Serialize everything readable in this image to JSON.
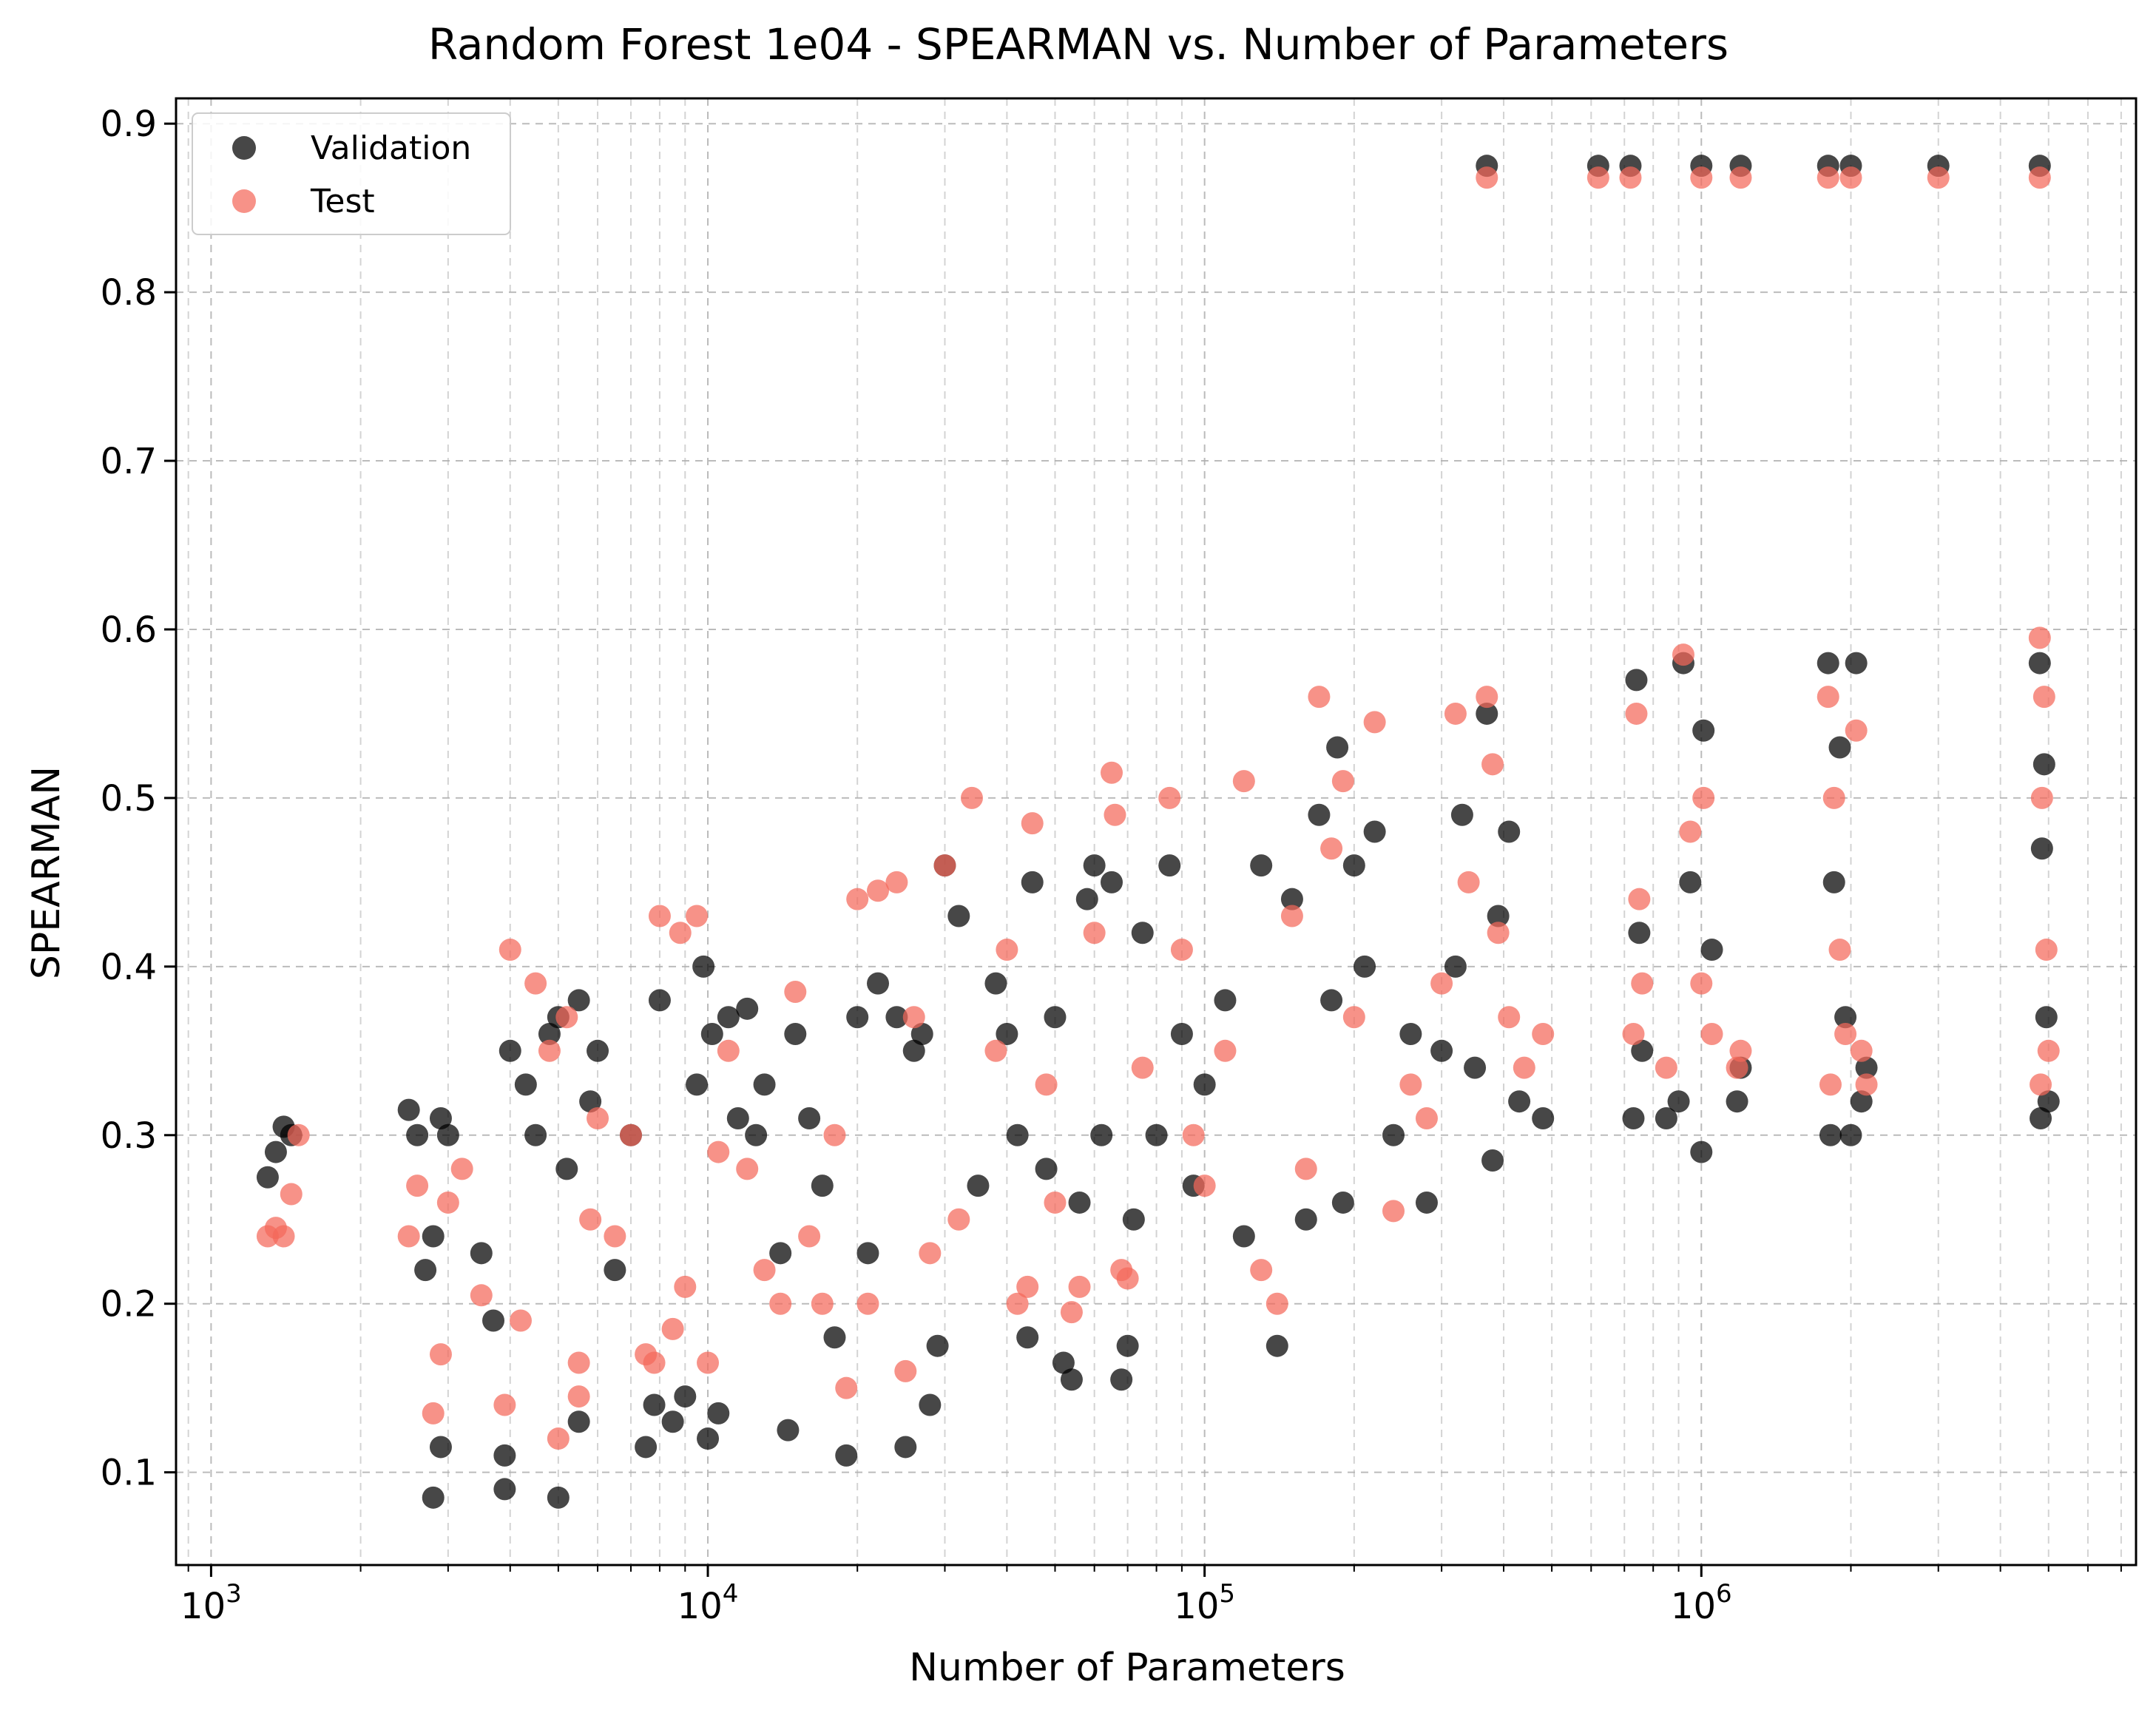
{
  "chart_data": {
    "type": "scatter",
    "title": "Random Forest 1e04 - SPEARMAN vs. Number of Parameters",
    "xlabel": "Number of Parameters",
    "ylabel": "SPEARMAN",
    "xscale": "log",
    "xlim": [
      850,
      7500000
    ],
    "ylim": [
      0.045,
      0.915
    ],
    "grid": true,
    "legend_position": "top-left",
    "x_ticks": [
      {
        "value": 1000,
        "base": "10",
        "exp": "3"
      },
      {
        "value": 10000,
        "base": "10",
        "exp": "4"
      },
      {
        "value": 100000,
        "base": "10",
        "exp": "5"
      },
      {
        "value": 1000000,
        "base": "10",
        "exp": "6"
      }
    ],
    "y_ticks": [
      {
        "value": 0.1,
        "label": "0.1"
      },
      {
        "value": 0.2,
        "label": "0.2"
      },
      {
        "value": 0.3,
        "label": "0.3"
      },
      {
        "value": 0.4,
        "label": "0.4"
      },
      {
        "value": 0.5,
        "label": "0.5"
      },
      {
        "value": 0.6,
        "label": "0.6"
      },
      {
        "value": 0.7,
        "label": "0.7"
      },
      {
        "value": 0.8,
        "label": "0.8"
      },
      {
        "value": 0.9,
        "label": "0.9"
      }
    ],
    "series": [
      {
        "name": "Validation",
        "color": "#000000",
        "points": [
          [
            1300,
            0.275
          ],
          [
            1350,
            0.29
          ],
          [
            1400,
            0.305
          ],
          [
            1450,
            0.3
          ],
          [
            2500,
            0.315
          ],
          [
            2600,
            0.3
          ],
          [
            2700,
            0.22
          ],
          [
            2800,
            0.24
          ],
          [
            2900,
            0.31
          ],
          [
            2800,
            0.085
          ],
          [
            2900,
            0.115
          ],
          [
            3000,
            0.3
          ],
          [
            3500,
            0.23
          ],
          [
            3700,
            0.19
          ],
          [
            3900,
            0.11
          ],
          [
            3900,
            0.09
          ],
          [
            4000,
            0.35
          ],
          [
            4300,
            0.33
          ],
          [
            4500,
            0.3
          ],
          [
            4800,
            0.36
          ],
          [
            5000,
            0.085
          ],
          [
            5000,
            0.37
          ],
          [
            5200,
            0.28
          ],
          [
            5500,
            0.38
          ],
          [
            5500,
            0.13
          ],
          [
            5800,
            0.32
          ],
          [
            6000,
            0.35
          ],
          [
            6500,
            0.22
          ],
          [
            7000,
            0.3
          ],
          [
            7500,
            0.115
          ],
          [
            7800,
            0.14
          ],
          [
            8000,
            0.38
          ],
          [
            8500,
            0.13
          ],
          [
            9000,
            0.145
          ],
          [
            9500,
            0.33
          ],
          [
            9800,
            0.4
          ],
          [
            10000,
            0.12
          ],
          [
            10200,
            0.36
          ],
          [
            10500,
            0.135
          ],
          [
            11000,
            0.37
          ],
          [
            11500,
            0.31
          ],
          [
            12000,
            0.375
          ],
          [
            12500,
            0.3
          ],
          [
            13000,
            0.33
          ],
          [
            14000,
            0.23
          ],
          [
            14500,
            0.125
          ],
          [
            15000,
            0.36
          ],
          [
            16000,
            0.31
          ],
          [
            17000,
            0.27
          ],
          [
            18000,
            0.18
          ],
          [
            19000,
            0.11
          ],
          [
            20000,
            0.37
          ],
          [
            21000,
            0.23
          ],
          [
            22000,
            0.39
          ],
          [
            24000,
            0.37
          ],
          [
            25000,
            0.115
          ],
          [
            26000,
            0.35
          ],
          [
            27000,
            0.36
          ],
          [
            28000,
            0.14
          ],
          [
            29000,
            0.175
          ],
          [
            30000,
            0.46
          ],
          [
            32000,
            0.43
          ],
          [
            35000,
            0.27
          ],
          [
            38000,
            0.39
          ],
          [
            40000,
            0.36
          ],
          [
            42000,
            0.3
          ],
          [
            44000,
            0.18
          ],
          [
            45000,
            0.45
          ],
          [
            48000,
            0.28
          ],
          [
            50000,
            0.37
          ],
          [
            52000,
            0.165
          ],
          [
            54000,
            0.155
          ],
          [
            56000,
            0.26
          ],
          [
            58000,
            0.44
          ],
          [
            60000,
            0.46
          ],
          [
            62000,
            0.3
          ],
          [
            65000,
            0.45
          ],
          [
            68000,
            0.155
          ],
          [
            70000,
            0.175
          ],
          [
            72000,
            0.25
          ],
          [
            75000,
            0.42
          ],
          [
            80000,
            0.3
          ],
          [
            85000,
            0.46
          ],
          [
            90000,
            0.36
          ],
          [
            95000,
            0.27
          ],
          [
            100000,
            0.33
          ],
          [
            110000,
            0.38
          ],
          [
            120000,
            0.24
          ],
          [
            130000,
            0.46
          ],
          [
            140000,
            0.175
          ],
          [
            150000,
            0.44
          ],
          [
            160000,
            0.25
          ],
          [
            170000,
            0.49
          ],
          [
            180000,
            0.38
          ],
          [
            185000,
            0.53
          ],
          [
            190000,
            0.26
          ],
          [
            200000,
            0.46
          ],
          [
            210000,
            0.4
          ],
          [
            220000,
            0.48
          ],
          [
            240000,
            0.3
          ],
          [
            260000,
            0.36
          ],
          [
            280000,
            0.26
          ],
          [
            300000,
            0.35
          ],
          [
            320000,
            0.4
          ],
          [
            330000,
            0.49
          ],
          [
            350000,
            0.34
          ],
          [
            370000,
            0.55
          ],
          [
            380000,
            0.285
          ],
          [
            390000,
            0.43
          ],
          [
            410000,
            0.48
          ],
          [
            430000,
            0.32
          ],
          [
            480000,
            0.31
          ],
          [
            370000,
            0.875
          ],
          [
            620000,
            0.875
          ],
          [
            720000,
            0.875
          ],
          [
            1000000,
            0.875
          ],
          [
            1200000,
            0.875
          ],
          [
            1800000,
            0.875
          ],
          [
            2000000,
            0.875
          ],
          [
            3000000,
            0.875
          ],
          [
            4800000,
            0.875
          ],
          [
            730000,
            0.31
          ],
          [
            740000,
            0.57
          ],
          [
            750000,
            0.42
          ],
          [
            760000,
            0.35
          ],
          [
            850000,
            0.31
          ],
          [
            900000,
            0.32
          ],
          [
            920000,
            0.58
          ],
          [
            950000,
            0.45
          ],
          [
            1000000,
            0.29
          ],
          [
            1010000,
            0.54
          ],
          [
            1050000,
            0.41
          ],
          [
            1180000,
            0.32
          ],
          [
            1200000,
            0.34
          ],
          [
            1800000,
            0.58
          ],
          [
            1820000,
            0.3
          ],
          [
            1850000,
            0.45
          ],
          [
            1900000,
            0.53
          ],
          [
            1950000,
            0.37
          ],
          [
            2000000,
            0.3
          ],
          [
            2050000,
            0.58
          ],
          [
            2100000,
            0.32
          ],
          [
            2150000,
            0.34
          ],
          [
            4800000,
            0.58
          ],
          [
            4820000,
            0.31
          ],
          [
            4850000,
            0.47
          ],
          [
            4900000,
            0.52
          ],
          [
            4950000,
            0.37
          ],
          [
            5000000,
            0.32
          ]
        ]
      },
      {
        "name": "Test",
        "color": "#f4685a",
        "points": [
          [
            1300,
            0.24
          ],
          [
            1350,
            0.245
          ],
          [
            1400,
            0.24
          ],
          [
            1450,
            0.265
          ],
          [
            1500,
            0.3
          ],
          [
            2500,
            0.24
          ],
          [
            2600,
            0.27
          ],
          [
            2800,
            0.135
          ],
          [
            2900,
            0.17
          ],
          [
            3000,
            0.26
          ],
          [
            3200,
            0.28
          ],
          [
            3500,
            0.205
          ],
          [
            3900,
            0.14
          ],
          [
            4000,
            0.41
          ],
          [
            4200,
            0.19
          ],
          [
            4500,
            0.39
          ],
          [
            4800,
            0.35
          ],
          [
            5000,
            0.12
          ],
          [
            5200,
            0.37
          ],
          [
            5500,
            0.145
          ],
          [
            5500,
            0.165
          ],
          [
            5800,
            0.25
          ],
          [
            6000,
            0.31
          ],
          [
            6500,
            0.24
          ],
          [
            7000,
            0.3
          ],
          [
            7500,
            0.17
          ],
          [
            7800,
            0.165
          ],
          [
            8000,
            0.43
          ],
          [
            8500,
            0.185
          ],
          [
            8800,
            0.42
          ],
          [
            9000,
            0.21
          ],
          [
            9500,
            0.43
          ],
          [
            10000,
            0.165
          ],
          [
            10500,
            0.29
          ],
          [
            11000,
            0.35
          ],
          [
            12000,
            0.28
          ],
          [
            13000,
            0.22
          ],
          [
            14000,
            0.2
          ],
          [
            15000,
            0.385
          ],
          [
            16000,
            0.24
          ],
          [
            17000,
            0.2
          ],
          [
            18000,
            0.3
          ],
          [
            19000,
            0.15
          ],
          [
            20000,
            0.44
          ],
          [
            21000,
            0.2
          ],
          [
            22000,
            0.445
          ],
          [
            24000,
            0.45
          ],
          [
            25000,
            0.16
          ],
          [
            26000,
            0.37
          ],
          [
            28000,
            0.23
          ],
          [
            30000,
            0.46
          ],
          [
            32000,
            0.25
          ],
          [
            34000,
            0.5
          ],
          [
            38000,
            0.35
          ],
          [
            40000,
            0.41
          ],
          [
            42000,
            0.2
          ],
          [
            44000,
            0.21
          ],
          [
            45000,
            0.485
          ],
          [
            48000,
            0.33
          ],
          [
            50000,
            0.26
          ],
          [
            54000,
            0.195
          ],
          [
            56000,
            0.21
          ],
          [
            60000,
            0.42
          ],
          [
            65000,
            0.515
          ],
          [
            66000,
            0.49
          ],
          [
            68000,
            0.22
          ],
          [
            70000,
            0.215
          ],
          [
            75000,
            0.34
          ],
          [
            85000,
            0.5
          ],
          [
            90000,
            0.41
          ],
          [
            95000,
            0.3
          ],
          [
            100000,
            0.27
          ],
          [
            110000,
            0.35
          ],
          [
            120000,
            0.51
          ],
          [
            130000,
            0.22
          ],
          [
            140000,
            0.2
          ],
          [
            150000,
            0.43
          ],
          [
            160000,
            0.28
          ],
          [
            170000,
            0.56
          ],
          [
            180000,
            0.47
          ],
          [
            190000,
            0.51
          ],
          [
            200000,
            0.37
          ],
          [
            220000,
            0.545
          ],
          [
            240000,
            0.255
          ],
          [
            260000,
            0.33
          ],
          [
            280000,
            0.31
          ],
          [
            300000,
            0.39
          ],
          [
            320000,
            0.55
          ],
          [
            340000,
            0.45
          ],
          [
            370000,
            0.56
          ],
          [
            380000,
            0.52
          ],
          [
            390000,
            0.42
          ],
          [
            410000,
            0.37
          ],
          [
            440000,
            0.34
          ],
          [
            480000,
            0.36
          ],
          [
            370000,
            0.868
          ],
          [
            620000,
            0.868
          ],
          [
            720000,
            0.868
          ],
          [
            1000000,
            0.868
          ],
          [
            1200000,
            0.868
          ],
          [
            1800000,
            0.868
          ],
          [
            2000000,
            0.868
          ],
          [
            3000000,
            0.868
          ],
          [
            4800000,
            0.868
          ],
          [
            730000,
            0.36
          ],
          [
            740000,
            0.55
          ],
          [
            750000,
            0.44
          ],
          [
            760000,
            0.39
          ],
          [
            850000,
            0.34
          ],
          [
            920000,
            0.585
          ],
          [
            950000,
            0.48
          ],
          [
            1000000,
            0.39
          ],
          [
            1010000,
            0.5
          ],
          [
            1050000,
            0.36
          ],
          [
            1180000,
            0.34
          ],
          [
            1200000,
            0.35
          ],
          [
            1800000,
            0.56
          ],
          [
            1820000,
            0.33
          ],
          [
            1850000,
            0.5
          ],
          [
            1900000,
            0.41
          ],
          [
            1950000,
            0.36
          ],
          [
            2050000,
            0.54
          ],
          [
            2100000,
            0.35
          ],
          [
            2150000,
            0.33
          ],
          [
            4800000,
            0.595
          ],
          [
            4820000,
            0.33
          ],
          [
            4850000,
            0.5
          ],
          [
            4900000,
            0.56
          ],
          [
            4950000,
            0.41
          ],
          [
            5000000,
            0.35
          ]
        ]
      }
    ]
  }
}
